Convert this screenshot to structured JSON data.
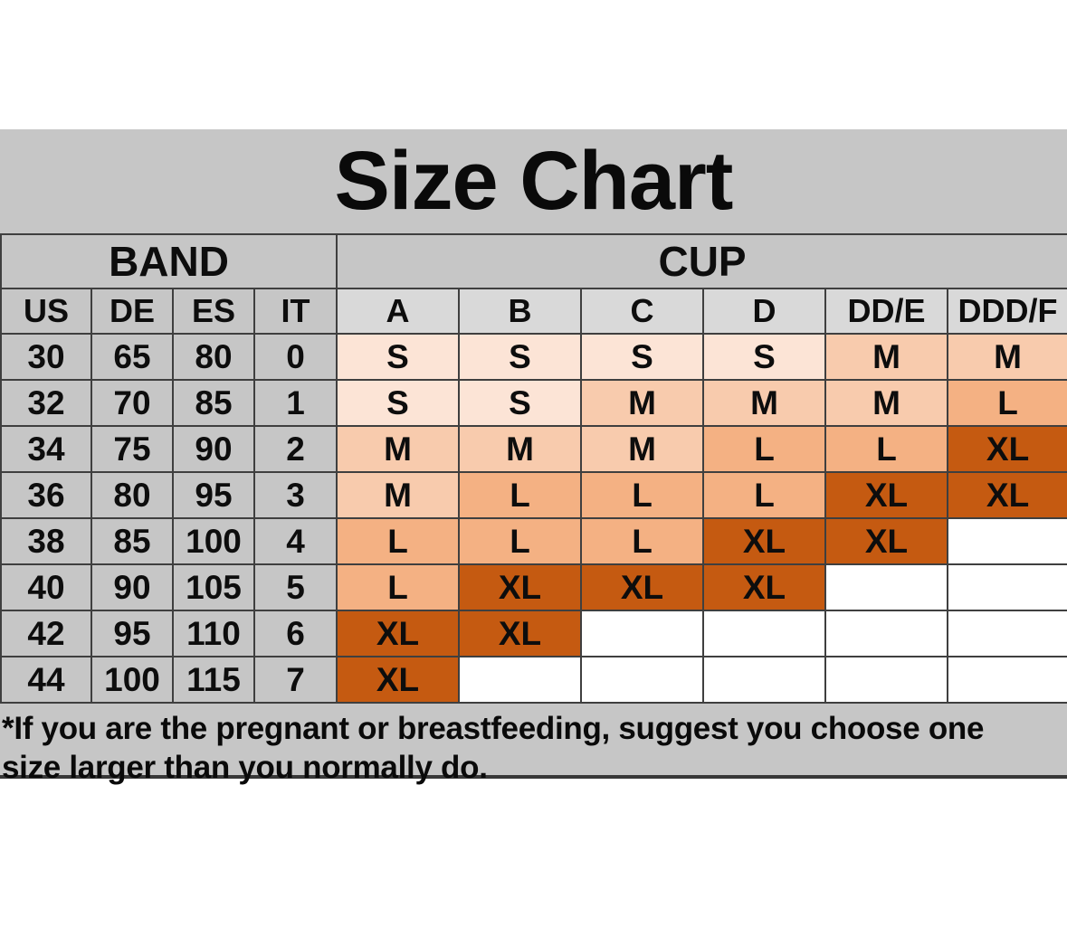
{
  "title": "Size Chart",
  "table": {
    "band_header": "BAND",
    "cup_header": "CUP",
    "band_columns": [
      "US",
      "DE",
      "ES",
      "IT"
    ],
    "cup_columns": [
      "A",
      "B",
      "C",
      "D",
      "DD/E",
      "DDD/F"
    ],
    "rows": [
      {
        "band": [
          "30",
          "65",
          "80",
          "0"
        ],
        "cups": [
          "S",
          "S",
          "S",
          "S",
          "M",
          "M"
        ]
      },
      {
        "band": [
          "32",
          "70",
          "85",
          "1"
        ],
        "cups": [
          "S",
          "S",
          "M",
          "M",
          "M",
          "L"
        ]
      },
      {
        "band": [
          "34",
          "75",
          "90",
          "2"
        ],
        "cups": [
          "M",
          "M",
          "M",
          "L",
          "L",
          "XL"
        ]
      },
      {
        "band": [
          "36",
          "80",
          "95",
          "3"
        ],
        "cups": [
          "M",
          "L",
          "L",
          "L",
          "XL",
          "XL"
        ]
      },
      {
        "band": [
          "38",
          "85",
          "100",
          "4"
        ],
        "cups": [
          "L",
          "L",
          "L",
          "XL",
          "XL",
          ""
        ]
      },
      {
        "band": [
          "40",
          "90",
          "105",
          "5"
        ],
        "cups": [
          "L",
          "XL",
          "XL",
          "XL",
          "",
          ""
        ]
      },
      {
        "band": [
          "42",
          "95",
          "110",
          "6"
        ],
        "cups": [
          "XL",
          "XL",
          "",
          "",
          "",
          ""
        ]
      },
      {
        "band": [
          "44",
          "100",
          "115",
          "7"
        ],
        "cups": [
          "XL",
          "",
          "",
          "",
          "",
          ""
        ]
      }
    ]
  },
  "size_colors": {
    "S": "#FCE4D6",
    "M": "#F8CBAD",
    "L": "#F4B183",
    "XL": "#C55A11",
    "": "#FFFFFF"
  },
  "colors": {
    "panel_gray": "#C6C6C6",
    "cup_header_gray": "#D9D9D9",
    "cell_border": "#3F3F3F",
    "bottom_rule": "#383838",
    "text": "#0A0A0A"
  },
  "note": {
    "line1": "*If you are the pregnant or breastfeeding, suggest you choose one",
    "line2": "size larger than you normally do."
  },
  "chart_data": {
    "type": "table",
    "title": "Size Chart",
    "group_headers": [
      {
        "label": "BAND",
        "span": 4
      },
      {
        "label": "CUP",
        "span": 6
      }
    ],
    "columns": [
      "US",
      "DE",
      "ES",
      "IT",
      "A",
      "B",
      "C",
      "D",
      "DD/E",
      "DDD/F"
    ],
    "rows": [
      [
        "30",
        "65",
        "80",
        "0",
        "S",
        "S",
        "S",
        "S",
        "M",
        "M"
      ],
      [
        "32",
        "70",
        "85",
        "1",
        "S",
        "S",
        "M",
        "M",
        "M",
        "L"
      ],
      [
        "34",
        "75",
        "90",
        "2",
        "M",
        "M",
        "M",
        "L",
        "L",
        "XL"
      ],
      [
        "36",
        "80",
        "95",
        "3",
        "M",
        "L",
        "L",
        "L",
        "XL",
        "XL"
      ],
      [
        "38",
        "85",
        "100",
        "4",
        "L",
        "L",
        "L",
        "XL",
        "XL",
        ""
      ],
      [
        "40",
        "90",
        "105",
        "5",
        "L",
        "XL",
        "XL",
        "XL",
        "",
        ""
      ],
      [
        "42",
        "95",
        "110",
        "6",
        "XL",
        "XL",
        "",
        "",
        "",
        ""
      ],
      [
        "44",
        "100",
        "115",
        "7",
        "XL",
        "",
        "",
        "",
        "",
        ""
      ]
    ],
    "legend_note": "Cell fill darkens with size: S lightest peach, M, L, XL dark orange; empty cells are white."
  }
}
